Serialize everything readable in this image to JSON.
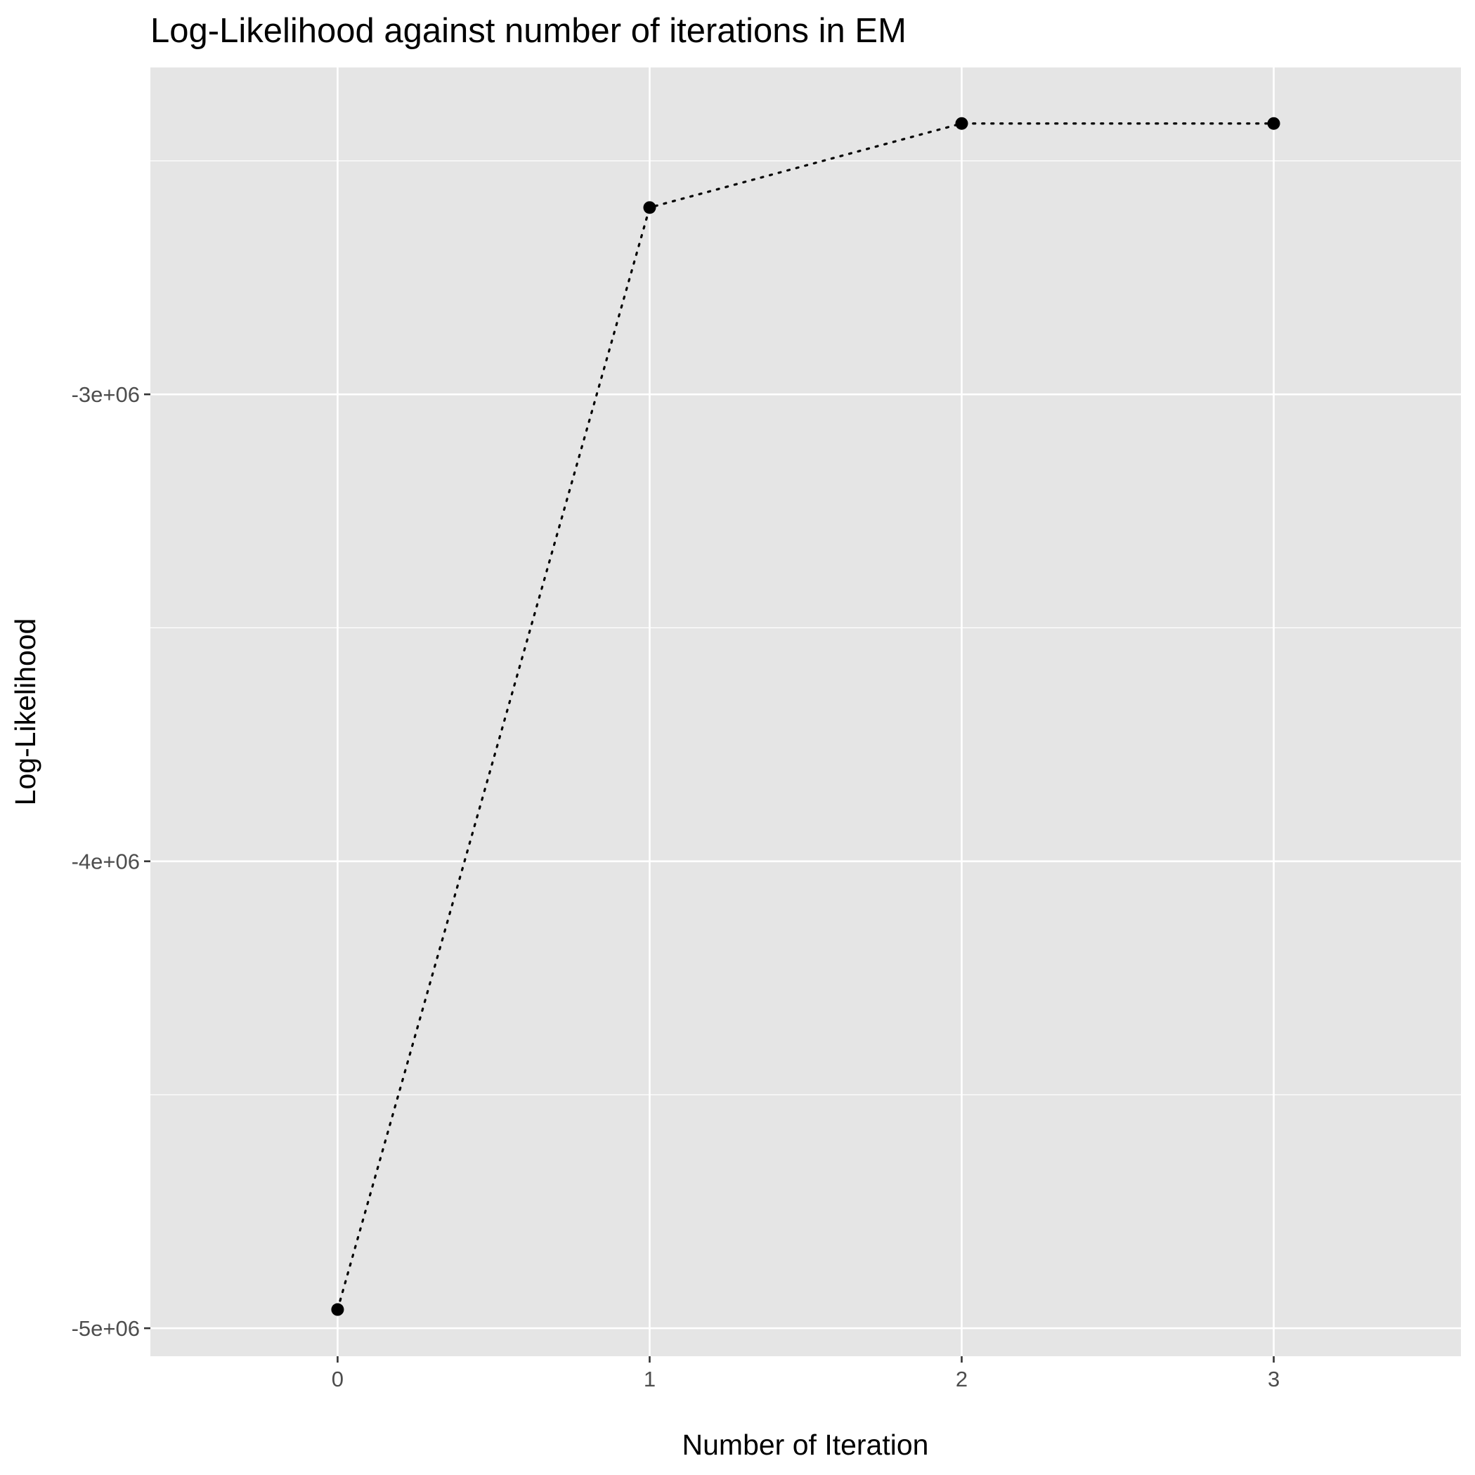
{
  "chart_data": {
    "type": "line",
    "title": "Log-Likelihood against number of iterations in EM",
    "xlabel": "Number of Iteration",
    "ylabel": "Log-Likelihood",
    "x": [
      0,
      1,
      2,
      3
    ],
    "series": [
      {
        "values": [
          -4960000,
          -2600000,
          -2420000,
          -2420000
        ]
      }
    ],
    "xlim": [
      -0.6,
      3.6
    ],
    "ylim": [
      -5060000,
      -2300000
    ],
    "x_ticks": [
      0,
      1,
      2,
      3
    ],
    "x_tick_labels": [
      "0",
      "1",
      "2",
      "3"
    ],
    "y_ticks": [
      -5000000,
      -4000000,
      -3000000
    ],
    "y_tick_labels": [
      "-5e+06",
      "-4e+06",
      "-3e+06"
    ],
    "y_minor_ticks": [
      -4500000,
      -3500000,
      -2500000
    ],
    "grid": true,
    "legend": "none",
    "line_style": "dotted",
    "colors": {
      "panel": "#e5e5e5",
      "grid": "#ffffff",
      "series": "#000000",
      "tick_text": "#4d4d4d"
    }
  }
}
